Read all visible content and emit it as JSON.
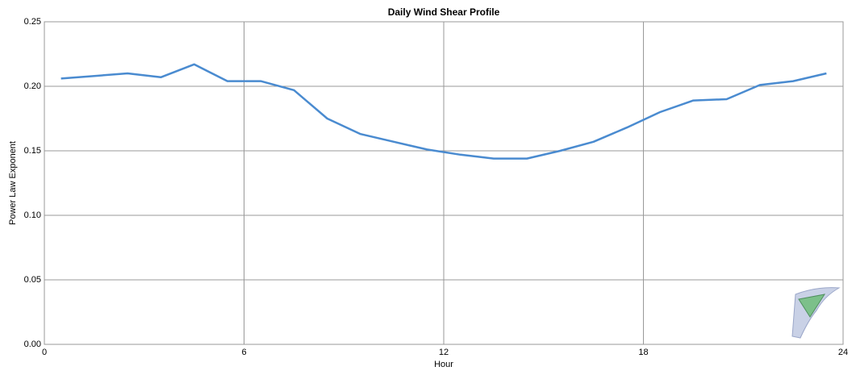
{
  "chart_data": {
    "type": "line",
    "title": "Daily Wind Shear Profile",
    "xlabel": "Hour",
    "ylabel": "Power Law Exponent",
    "x": [
      0.5,
      1.5,
      2.5,
      3.5,
      4.5,
      5.5,
      6.5,
      7.5,
      8.5,
      9.5,
      10.5,
      11.5,
      12.5,
      13.5,
      14.5,
      15.5,
      16.5,
      17.5,
      18.5,
      19.5,
      20.5,
      21.5,
      22.5,
      23.5
    ],
    "series": [
      {
        "name": "Power Law Exponent",
        "color": "#4a8bd0",
        "values": [
          0.206,
          0.208,
          0.21,
          0.207,
          0.217,
          0.204,
          0.204,
          0.197,
          0.175,
          0.163,
          0.157,
          0.151,
          0.147,
          0.144,
          0.144,
          0.15,
          0.157,
          0.168,
          0.18,
          0.189,
          0.19,
          0.201,
          0.204,
          0.21
        ]
      }
    ],
    "xlim": [
      0,
      24
    ],
    "xticks": [
      0,
      6,
      12,
      18,
      24
    ],
    "ylim": [
      0,
      0.25
    ],
    "yticks": [
      {
        "value": 0,
        "label": "0.00"
      },
      {
        "value": 0.05,
        "label": "0.05"
      },
      {
        "value": 0.1,
        "label": "0.10"
      },
      {
        "value": 0.15,
        "label": "0.15"
      },
      {
        "value": 0.2,
        "label": "0.20"
      },
      {
        "value": 0.25,
        "label": "0.25"
      }
    ],
    "grid": true
  }
}
